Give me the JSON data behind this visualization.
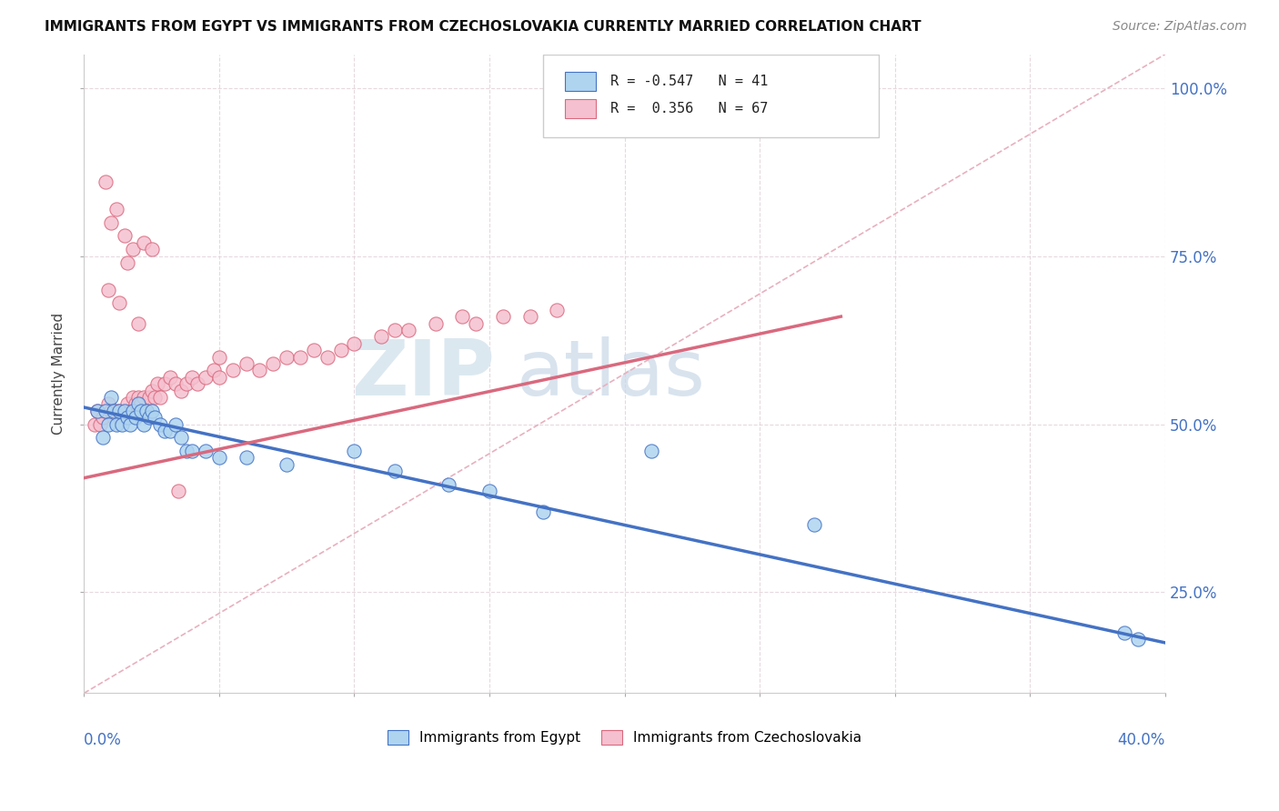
{
  "title": "IMMIGRANTS FROM EGYPT VS IMMIGRANTS FROM CZECHOSLOVAKIA CURRENTLY MARRIED CORRELATION CHART",
  "source_text": "Source: ZipAtlas.com",
  "ylabel": "Currently Married",
  "xmin": 0.0,
  "xmax": 0.4,
  "ymin": 0.1,
  "ymax": 1.05,
  "egypt_color": "#aed4f0",
  "egypt_line_color": "#4472c4",
  "czech_color": "#f5c0cf",
  "czech_line_color": "#d9697e",
  "ref_line_color": "#e8b0be",
  "egypt_line_x0": 0.0,
  "egypt_line_y0": 0.525,
  "egypt_line_x1": 0.4,
  "egypt_line_y1": 0.175,
  "czech_line_x0": 0.0,
  "czech_line_y0": 0.42,
  "czech_line_x1": 0.28,
  "czech_line_y1": 0.66,
  "ref_line_x0": 0.0,
  "ref_line_y0": 0.1,
  "ref_line_x1": 0.4,
  "ref_line_y1": 1.05,
  "egypt_pts_x": [
    0.005,
    0.007,
    0.008,
    0.009,
    0.01,
    0.011,
    0.012,
    0.013,
    0.014,
    0.015,
    0.016,
    0.017,
    0.018,
    0.019,
    0.02,
    0.021,
    0.022,
    0.023,
    0.024,
    0.025,
    0.026,
    0.028,
    0.03,
    0.032,
    0.034,
    0.036,
    0.038,
    0.04,
    0.045,
    0.05,
    0.06,
    0.075,
    0.1,
    0.115,
    0.135,
    0.15,
    0.17,
    0.21,
    0.27,
    0.385,
    0.39
  ],
  "egypt_pts_y": [
    0.52,
    0.48,
    0.52,
    0.5,
    0.54,
    0.52,
    0.5,
    0.52,
    0.5,
    0.52,
    0.51,
    0.5,
    0.52,
    0.51,
    0.53,
    0.52,
    0.5,
    0.52,
    0.51,
    0.52,
    0.51,
    0.5,
    0.49,
    0.49,
    0.5,
    0.48,
    0.46,
    0.46,
    0.46,
    0.45,
    0.45,
    0.44,
    0.46,
    0.43,
    0.41,
    0.4,
    0.37,
    0.46,
    0.35,
    0.19,
    0.18
  ],
  "czech_pts_x": [
    0.004,
    0.005,
    0.006,
    0.007,
    0.008,
    0.009,
    0.01,
    0.011,
    0.012,
    0.013,
    0.014,
    0.015,
    0.016,
    0.017,
    0.018,
    0.019,
    0.02,
    0.021,
    0.022,
    0.023,
    0.024,
    0.025,
    0.026,
    0.027,
    0.028,
    0.03,
    0.032,
    0.034,
    0.036,
    0.038,
    0.04,
    0.042,
    0.045,
    0.048,
    0.05,
    0.055,
    0.06,
    0.065,
    0.07,
    0.075,
    0.08,
    0.085,
    0.09,
    0.095,
    0.1,
    0.11,
    0.115,
    0.13,
    0.145,
    0.155,
    0.165,
    0.175,
    0.01,
    0.012,
    0.015,
    0.018,
    0.022,
    0.025,
    0.008,
    0.016,
    0.009,
    0.013,
    0.02,
    0.035,
    0.05,
    0.12,
    0.14
  ],
  "czech_pts_y": [
    0.5,
    0.52,
    0.5,
    0.51,
    0.52,
    0.53,
    0.52,
    0.51,
    0.52,
    0.52,
    0.51,
    0.52,
    0.53,
    0.52,
    0.54,
    0.53,
    0.54,
    0.53,
    0.54,
    0.52,
    0.54,
    0.55,
    0.54,
    0.56,
    0.54,
    0.56,
    0.57,
    0.56,
    0.55,
    0.56,
    0.57,
    0.56,
    0.57,
    0.58,
    0.57,
    0.58,
    0.59,
    0.58,
    0.59,
    0.6,
    0.6,
    0.61,
    0.6,
    0.61,
    0.62,
    0.63,
    0.64,
    0.65,
    0.65,
    0.66,
    0.66,
    0.67,
    0.8,
    0.82,
    0.78,
    0.76,
    0.77,
    0.76,
    0.86,
    0.74,
    0.7,
    0.68,
    0.65,
    0.4,
    0.6,
    0.64,
    0.66
  ]
}
